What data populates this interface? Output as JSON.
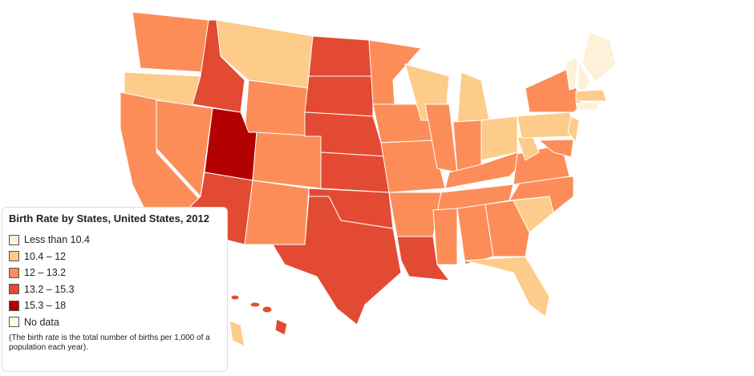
{
  "legend": {
    "title": "Birth Rate by States, United States, 2012",
    "items": [
      {
        "label": "Less than 10.4",
        "color": "#fef0d9"
      },
      {
        "label": "10.4 – 12",
        "color": "#fdcc8a"
      },
      {
        "label": "12 – 13.2",
        "color": "#fc8d59"
      },
      {
        "label": "13.2 – 15.3",
        "color": "#e34a33"
      },
      {
        "label": "15.3 – 18",
        "color": "#b30000"
      },
      {
        "label": "No data",
        "color": "#ffffe5"
      }
    ],
    "note": "(The birth rate is the total number of births per 1,000 of a population each year)."
  }
}
